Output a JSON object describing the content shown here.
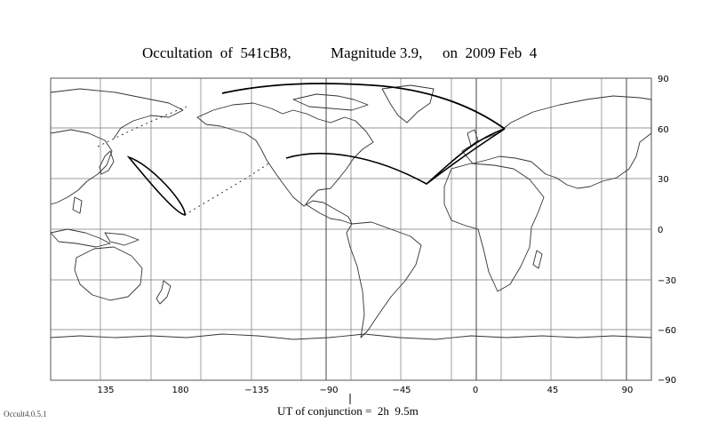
{
  "title": {
    "part1": "Occultation  of  541cB8,",
    "part2": "Magnitude 3.9,",
    "part3": "on  2009 Feb  4"
  },
  "axes": {
    "lon_ticks": [
      "135",
      "180",
      "−135",
      "−90",
      "−45",
      "0",
      "45",
      "90"
    ],
    "lat_ticks": [
      "90",
      "60",
      "30",
      "0",
      "−30",
      "−60",
      "−90"
    ]
  },
  "footer": {
    "ut_label": "UT of conjunction =  2h  9.5m",
    "version": "Occult4.0.5.1"
  },
  "colors": {
    "lines": "#000000",
    "grid": "#555555",
    "coast": "#333333"
  }
}
